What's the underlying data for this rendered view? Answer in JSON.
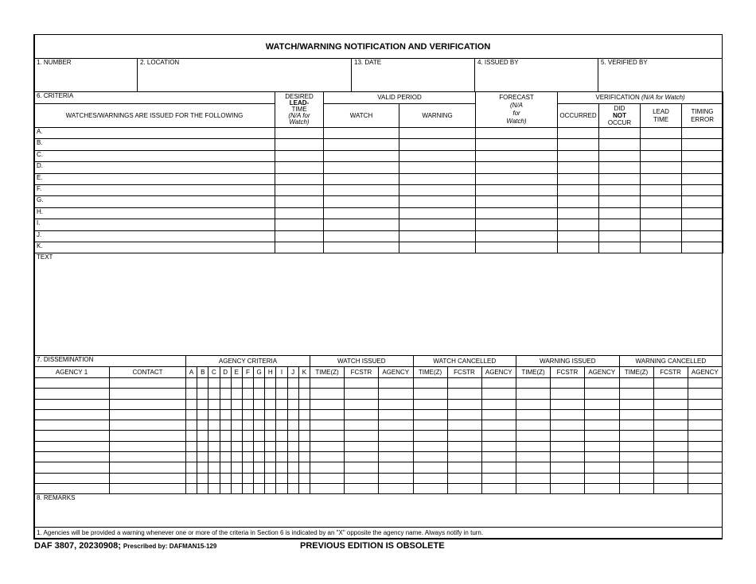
{
  "title": "WATCH/WARNING NOTIFICATION AND VERIFICATION",
  "fields": {
    "number": "1. NUMBER",
    "location": "2. LOCATION",
    "date": "13. DATE",
    "issued_by": "4. ISSUED BY",
    "verified_by": "5. VERIFIED BY"
  },
  "criteria": {
    "section": "6.  CRITERIA",
    "issued_for": "WATCHES/WARNINGS ARE ISSUED FOR THE FOLLOWING",
    "desired": "DESIRED",
    "lead": "LEAD-",
    "time": "TIME",
    "na_watch": "(N/A for Watch)",
    "valid_period": "VALID PERIOD",
    "watch": "WATCH",
    "warning": "WARNING",
    "forecast": "FORECAST",
    "forecast_na1": "(N/A",
    "forecast_na2": "for",
    "forecast_na3": "Watch)",
    "verification": "VERIFICATION",
    "verification_na": "(N/A for Watch)",
    "occurred": "OCCURRED",
    "did": "DID",
    "not": "NOT",
    "occur": "OCCUR",
    "lead_time1": "LEAD",
    "lead_time2": "TIME",
    "timing1": "TIMING",
    "timing2": "ERROR",
    "rows": [
      "A.",
      "B.",
      "C.",
      "D.",
      "E.",
      "F.",
      "G.",
      "H.",
      "I.",
      "J.",
      "K."
    ]
  },
  "text_label": "TEXT",
  "dissemination": {
    "section": "7.  DISSEMINATION",
    "agency": "AGENCY  1",
    "contact": "CONTACT",
    "agency_criteria": "AGENCY CRITERIA",
    "letters": [
      "A",
      "B",
      "C",
      "D",
      "E",
      "F",
      "G",
      "H",
      "I",
      "J",
      "K"
    ],
    "groups": [
      "WATCH ISSUED",
      "WATCH CANCELLED",
      "WARNING ISSUED",
      "WARNING CANCELLED"
    ],
    "sub": [
      "TIME(Z)",
      "FCSTR",
      "AGENCY"
    ],
    "row_count": 11
  },
  "remarks": "8.  REMARKS",
  "note": "1.  Agencies will be provided a warning whenever one or more of the criteria in Section 6 is indicated by an \"X\" opposite the agency name.  Always notify in turn.",
  "footer": {
    "form": "DAF 3807, 20230908; ",
    "prescribed": "Prescribed by: DAFMAN15-129",
    "obsolete": "PREVIOUS EDITION IS OBSOLETE"
  }
}
